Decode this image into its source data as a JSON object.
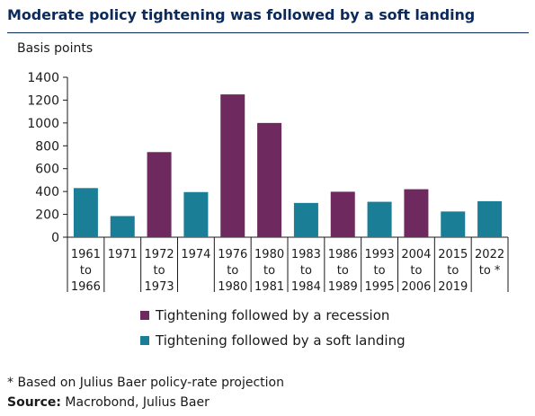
{
  "title": "Moderate policy tightening was followed by a soft landing",
  "footnote": "* Based on Julius Baer policy-rate projection",
  "source": {
    "label": "Source:",
    "text": " Macrobond, Julius Baer"
  },
  "colors": {
    "recession": "#6e2a5e",
    "soft_landing": "#197e96",
    "title": "#0b2a5b"
  },
  "chart_data": {
    "type": "bar",
    "title": "Moderate policy tightening was followed by a soft landing",
    "ylabel": "Basis points",
    "xlabel": "",
    "ylim": [
      0,
      1400
    ],
    "yticks": [
      0,
      200,
      400,
      600,
      800,
      1000,
      1200,
      1400
    ],
    "grid": false,
    "legend_position": "bottom",
    "categories": [
      [
        "1961",
        "to",
        "1966"
      ],
      [
        "1971"
      ],
      [
        "1972",
        "to",
        "1973"
      ],
      [
        "1974"
      ],
      [
        "1976",
        "to",
        "1980"
      ],
      [
        "1980",
        "to",
        "1981"
      ],
      [
        "1983",
        "to",
        "1984"
      ],
      [
        "1986",
        "to",
        "1989"
      ],
      [
        "1993",
        "to",
        "1995"
      ],
      [
        "2004",
        "to",
        "2006"
      ],
      [
        "2015",
        "to",
        "2019"
      ],
      [
        "2022",
        "to *"
      ]
    ],
    "values": [
      430,
      185,
      745,
      395,
      1250,
      1000,
      300,
      398,
      310,
      420,
      225,
      315
    ],
    "groups": [
      "soft_landing",
      "soft_landing",
      "recession",
      "soft_landing",
      "recession",
      "recession",
      "soft_landing",
      "recession",
      "soft_landing",
      "recession",
      "soft_landing",
      "soft_landing"
    ],
    "legend": [
      {
        "key": "recession",
        "label": "Tightening followed by a recession"
      },
      {
        "key": "soft_landing",
        "label": "Tightening followed by a soft landing"
      }
    ]
  }
}
